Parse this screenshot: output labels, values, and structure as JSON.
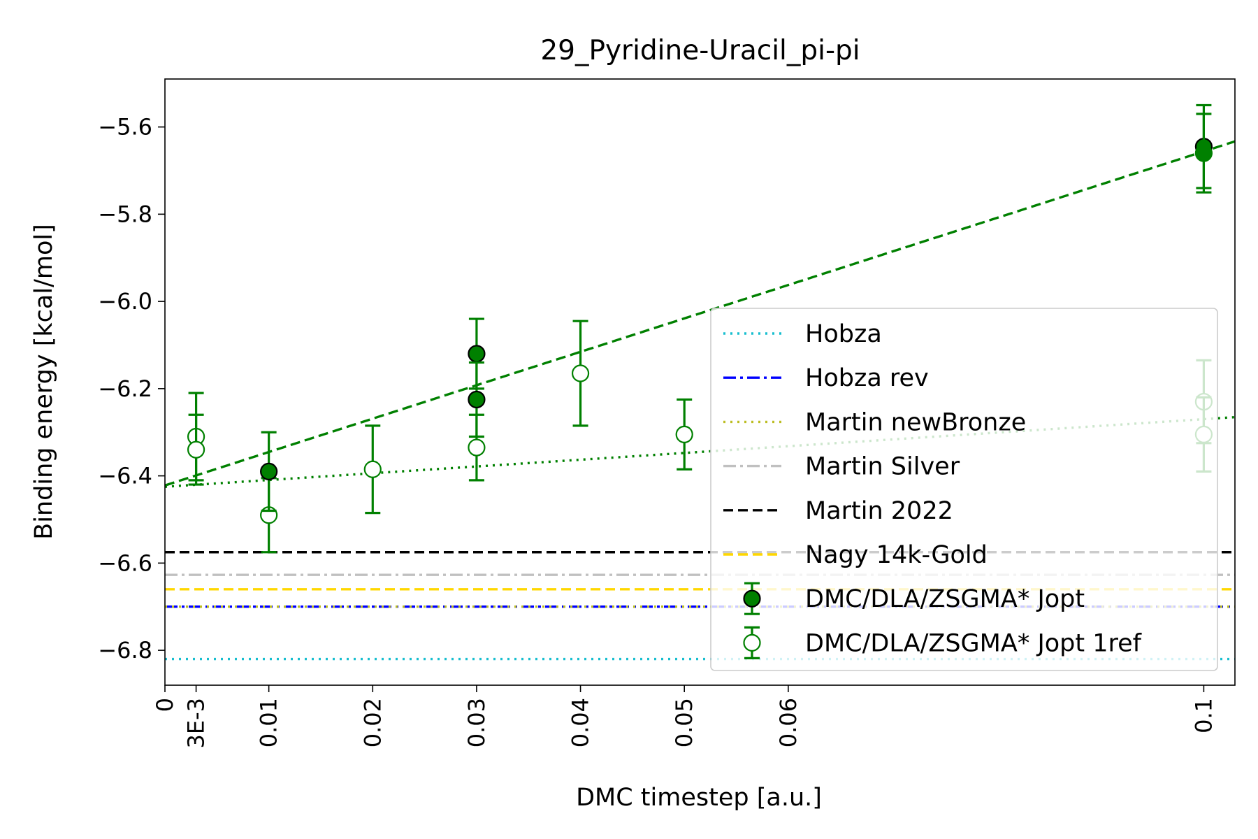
{
  "chart_data": {
    "type": "scatter",
    "title": "29_Pyridine-Uracil_pi-pi",
    "xlabel": "DMC timestep [a.u.]",
    "ylabel": "Binding energy [kcal/mol]",
    "xlim": [
      0,
      0.103
    ],
    "ylim": [
      -6.88,
      -5.49
    ],
    "xticks": [
      {
        "v": 0,
        "label": "0"
      },
      {
        "v": 0.003,
        "label": "3E-3"
      },
      {
        "v": 0.01,
        "label": "0.01"
      },
      {
        "v": 0.02,
        "label": "0.02"
      },
      {
        "v": 0.03,
        "label": "0.03"
      },
      {
        "v": 0.04,
        "label": "0.04"
      },
      {
        "v": 0.05,
        "label": "0.05"
      },
      {
        "v": 0.06,
        "label": "0.06"
      },
      {
        "v": 0.1,
        "label": "0.1"
      }
    ],
    "yticks": [
      {
        "v": -5.6,
        "label": "−5.6"
      },
      {
        "v": -5.8,
        "label": "−5.8"
      },
      {
        "v": -6.0,
        "label": "−6.0"
      },
      {
        "v": -6.2,
        "label": "−6.2"
      },
      {
        "v": -6.4,
        "label": "−6.4"
      },
      {
        "v": -6.6,
        "label": "−6.6"
      },
      {
        "v": -6.8,
        "label": "−6.8"
      }
    ],
    "grid": false,
    "legend_position": "lower right",
    "reference_lines": [
      {
        "name": "Hobza",
        "y": -6.82,
        "color": "#17becf",
        "dash": "dotted"
      },
      {
        "name": "Hobza rev",
        "y": -6.7,
        "color": "#0000ff",
        "dash": "dashdot"
      },
      {
        "name": "Martin newBronze",
        "y": -6.7,
        "color": "#bcbd22",
        "dash": "dotted"
      },
      {
        "name": "Martin Silver",
        "y": -6.627,
        "color": "#c0c0c0",
        "dash": "dashdot"
      },
      {
        "name": "Martin 2022",
        "y": -6.575,
        "color": "#000000",
        "dash": "dashed"
      },
      {
        "name": "Nagy 14k-Gold",
        "y": -6.66,
        "color": "#ffd700",
        "dash": "dashed"
      }
    ],
    "series": [
      {
        "name": "DMC/DLA/ZSGMA* Jopt",
        "marker": "filled",
        "color": "#008000",
        "fit": {
          "style": "dashed",
          "intercept": -6.422,
          "slope": 7.66
        },
        "points": [
          {
            "x": 0.01,
            "y": -6.39,
            "err": 0.09,
            "edge": "#000000"
          },
          {
            "x": 0.03,
            "y": -6.12,
            "err": 0.08,
            "edge": "#000000"
          },
          {
            "x": 0.03,
            "y": -6.225,
            "err": 0.085,
            "edge": "#000000"
          },
          {
            "x": 0.1,
            "y": -5.645,
            "err": 0.095,
            "edge": "#000000"
          },
          {
            "x": 0.1,
            "y": -5.66,
            "err": 0.09,
            "edge": "#008000"
          }
        ]
      },
      {
        "name": "DMC/DLA/ZSGMA* Jopt 1ref",
        "marker": "open",
        "color": "#008000",
        "fit": {
          "style": "dotted",
          "intercept": -6.425,
          "slope": 1.55
        },
        "points": [
          {
            "x": 0.003,
            "y": -6.31,
            "err": 0.1
          },
          {
            "x": 0.003,
            "y": -6.34,
            "err": 0.08
          },
          {
            "x": 0.01,
            "y": -6.49,
            "err": 0.085
          },
          {
            "x": 0.02,
            "y": -6.385,
            "err": 0.1
          },
          {
            "x": 0.03,
            "y": -6.335,
            "err": 0.075
          },
          {
            "x": 0.04,
            "y": -6.165,
            "err": 0.12
          },
          {
            "x": 0.05,
            "y": -6.305,
            "err": 0.08
          },
          {
            "x": 0.1,
            "y": -6.23,
            "err": 0.095
          },
          {
            "x": 0.1,
            "y": -6.305,
            "err": 0.085
          }
        ]
      }
    ]
  }
}
